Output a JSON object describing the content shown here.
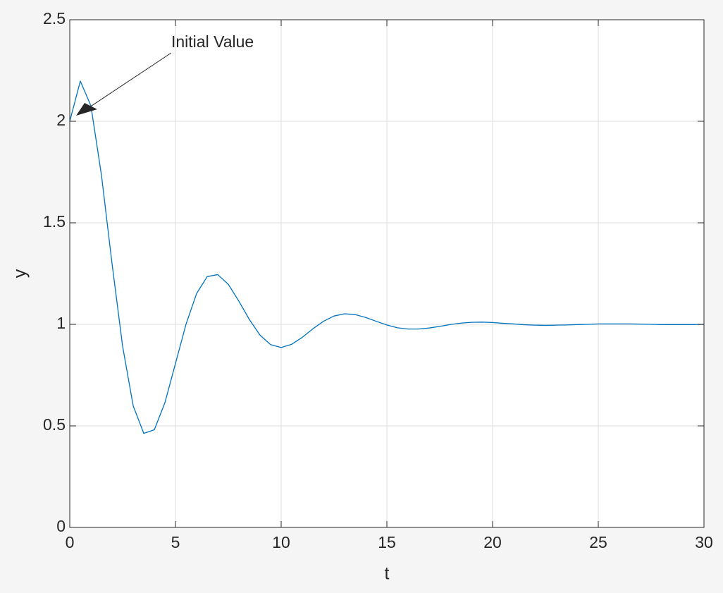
{
  "chart_data": {
    "type": "line",
    "xlabel": "t",
    "ylabel": "y",
    "annotation": "Initial Value",
    "color": "#0072bd",
    "grid": true,
    "xlim": [
      0,
      30
    ],
    "xticks": [
      0,
      5,
      10,
      15,
      20,
      25,
      30
    ],
    "ylim": [
      0,
      2.5
    ],
    "yticks": [
      0,
      0.5,
      1,
      1.5,
      2,
      2.5
    ],
    "x": [
      0,
      0.5,
      1,
      1.5,
      2,
      2.5,
      3,
      3.5,
      4,
      4.5,
      5,
      5.5,
      6,
      6.5,
      7,
      7.5,
      8,
      8.5,
      9,
      9.5,
      10,
      10.5,
      11,
      11.5,
      12,
      12.5,
      13,
      13.5,
      14,
      14.5,
      15,
      15.5,
      16,
      16.5,
      17,
      17.5,
      18,
      18.5,
      19,
      19.5,
      20,
      20.5,
      21,
      21.5,
      22,
      22.5,
      23,
      23.5,
      24,
      24.5,
      25,
      25.5,
      26,
      26.5,
      27,
      27.5,
      28,
      28.5,
      29,
      29.5,
      30
    ],
    "values": [
      2,
      2.198,
      2.076,
      1.734,
      1.299,
      0.892,
      0.599,
      0.463,
      0.481,
      0.614,
      0.807,
      1.001,
      1.152,
      1.235,
      1.245,
      1.197,
      1.114,
      1.023,
      0.947,
      0.9,
      0.886,
      0.902,
      0.936,
      0.978,
      1.015,
      1.041,
      1.052,
      1.048,
      1.034,
      1.015,
      0.997,
      0.983,
      0.977,
      0.977,
      0.982,
      0.99,
      0.999,
      1.006,
      1.01,
      1.011,
      1.009,
      1.005,
      1.002,
      0.998,
      0.996,
      0.995,
      0.996,
      0.997,
      0.999,
      1,
      1.002,
      1.002,
      1.002,
      1.002,
      1.001,
      1,
      0.999,
      0.999,
      0.999,
      0.999,
      1
    ]
  }
}
